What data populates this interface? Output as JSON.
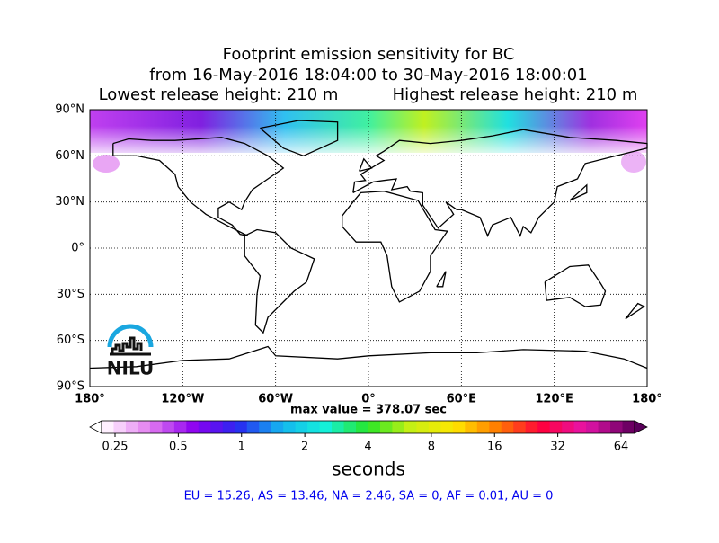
{
  "header": {
    "title_lines": [
      "Footprint emission sensitivity for BC",
      "from 16-May-2016 18:04:00 to 30-May-2016 18:00:01"
    ],
    "release_low": "Lowest release height: 210 m",
    "release_high": "Highest release height: 210 m"
  },
  "map": {
    "lat_ticks": [
      {
        "value": 90,
        "label": "90°N"
      },
      {
        "value": 60,
        "label": "60°N"
      },
      {
        "value": 30,
        "label": "30°N"
      },
      {
        "value": 0,
        "label": "0°"
      },
      {
        "value": -30,
        "label": "30°S"
      },
      {
        "value": -60,
        "label": "60°S"
      },
      {
        "value": -90,
        "label": "90°S"
      }
    ],
    "lon_ticks": [
      {
        "value": -180,
        "label": "180°"
      },
      {
        "value": -120,
        "label": "120°W"
      },
      {
        "value": -60,
        "label": "60°W"
      },
      {
        "value": 0,
        "label": "0°"
      },
      {
        "value": 60,
        "label": "60°E"
      },
      {
        "value": 120,
        "label": "120°E"
      },
      {
        "value": 180,
        "label": "180°"
      }
    ],
    "logo": "NILU",
    "max_value": "max value = 378.07 sec"
  },
  "colorbar": {
    "ticks": [
      0.25,
      0.5,
      1,
      2,
      4,
      8,
      16,
      32,
      64
    ],
    "label": "seconds"
  },
  "footer": "EU = 15.26,  AS = 13.46,  NA = 2.46,  SA = 0,  AF = 0.01,  AU = 0"
}
